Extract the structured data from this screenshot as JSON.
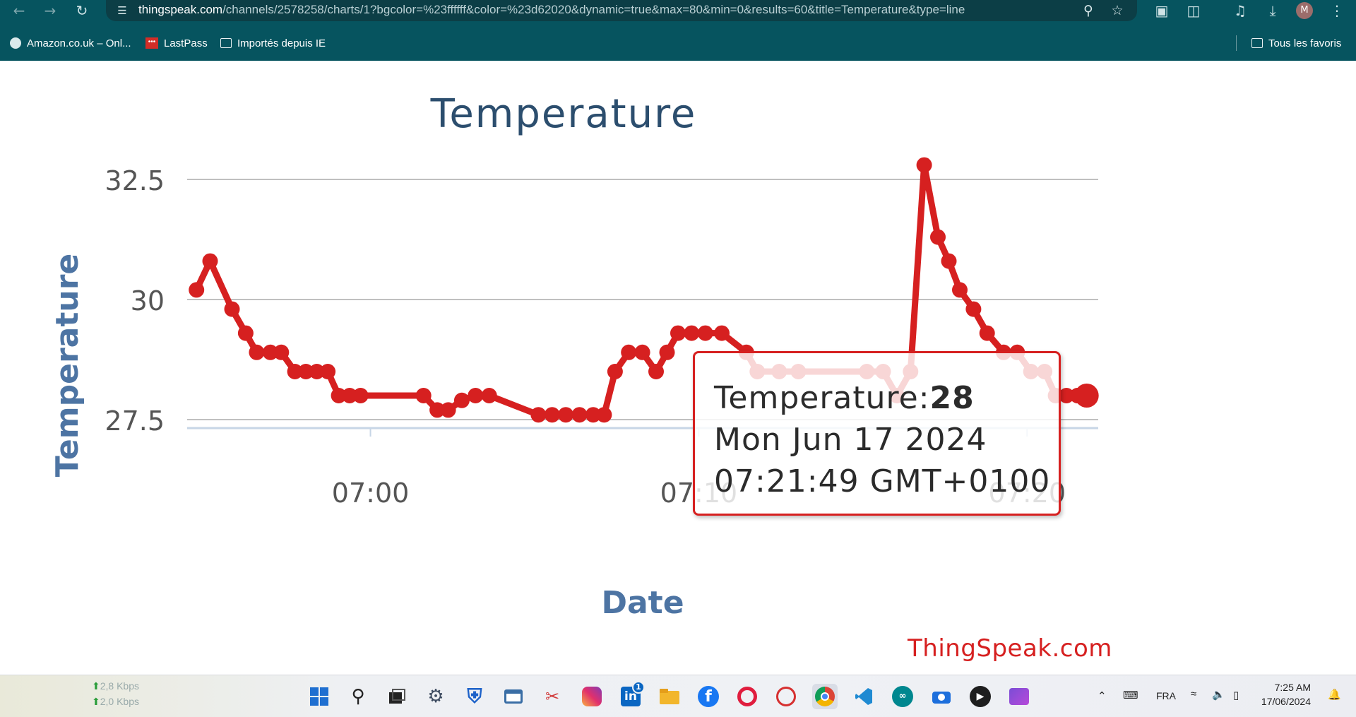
{
  "browser": {
    "url_host": "thingspeak.com",
    "url_path": "/channels/2578258/charts/1?bgcolor=%23ffffff&color=%23d62020&dynamic=true&max=80&min=0&results=60&title=Temperature&type=line",
    "profile_initial": "M",
    "bookmarks": [
      {
        "label": "Amazon.co.uk – Onl...",
        "icon": "globe-icon"
      },
      {
        "label": "LastPass",
        "icon": "lastpass-icon"
      },
      {
        "label": "Importés depuis IE",
        "icon": "folder-icon"
      }
    ],
    "all_bookmarks_label": "Tous les favoris"
  },
  "tooltip": {
    "series_label": "Temperature:",
    "value": "28",
    "date_line": "Mon Jun 17 2024",
    "time_line": "07:21:49 GMT+0100"
  },
  "watermark": "ThingSpeak.com",
  "taskbar": {
    "net_up": "2,8 Kbps",
    "net_down": "2,0 Kbps",
    "language": "FRA",
    "time": "7:25 AM",
    "date": "17/06/2024",
    "apps": [
      "windows-start-icon",
      "search-icon",
      "task-view-icon",
      "settings-icon",
      "defender-icon",
      "terminal-icon",
      "snipping-tool-icon",
      "instagram-icon",
      "linkedin-icon",
      "file-explorer-icon",
      "facebook-icon",
      "opera-icon",
      "sync-icon",
      "chrome-icon",
      "vscode-icon",
      "arduino-icon",
      "camera-icon",
      "media-player-icon",
      "clipchamp-icon"
    ],
    "linkedin_badge": "1"
  },
  "chart_data": {
    "type": "line",
    "title": "Temperature",
    "xlabel": "Date",
    "ylabel": "Temperature",
    "color": "#d62020",
    "x_ticks": [
      "07:00",
      "07:10",
      "07:20"
    ],
    "y_ticks": [
      "27.5",
      "30",
      "32.5"
    ],
    "ylim": [
      27.3,
      32.8
    ],
    "xlim": [
      "06:54:25",
      "07:22:10"
    ],
    "grid": true,
    "legend": "none",
    "highlighted_point": {
      "time": "07:21:49",
      "value": 28
    },
    "series": [
      {
        "name": "Temperature",
        "points": [
          [
            "06:54:42",
            30.2
          ],
          [
            "06:55:07",
            30.8
          ],
          [
            "06:55:47",
            29.8
          ],
          [
            "06:56:12",
            29.3
          ],
          [
            "06:56:32",
            28.9
          ],
          [
            "06:56:57",
            28.9
          ],
          [
            "06:57:17",
            28.9
          ],
          [
            "06:57:42",
            28.5
          ],
          [
            "06:58:02",
            28.5
          ],
          [
            "06:58:22",
            28.5
          ],
          [
            "06:58:42",
            28.5
          ],
          [
            "06:59:02",
            28.0
          ],
          [
            "06:59:22",
            28.0
          ],
          [
            "06:59:42",
            28.0
          ],
          [
            "07:01:37",
            28.0
          ],
          [
            "07:02:02",
            27.7
          ],
          [
            "07:02:22",
            27.7
          ],
          [
            "07:02:47",
            27.9
          ],
          [
            "07:03:12",
            28.0
          ],
          [
            "07:03:37",
            28.0
          ],
          [
            "07:05:07",
            27.6
          ],
          [
            "07:05:32",
            27.6
          ],
          [
            "07:05:57",
            27.6
          ],
          [
            "07:06:22",
            27.6
          ],
          [
            "07:06:47",
            27.6
          ],
          [
            "07:07:07",
            27.6
          ],
          [
            "07:07:27",
            28.5
          ],
          [
            "07:07:52",
            28.9
          ],
          [
            "07:08:17",
            28.9
          ],
          [
            "07:08:42",
            28.5
          ],
          [
            "07:09:02",
            28.9
          ],
          [
            "07:09:22",
            29.3
          ],
          [
            "07:09:47",
            29.3
          ],
          [
            "07:10:12",
            29.3
          ],
          [
            "07:10:42",
            29.3
          ],
          [
            "07:11:27",
            28.9
          ],
          [
            "07:11:47",
            28.5
          ],
          [
            "07:12:27",
            28.5
          ],
          [
            "07:13:02",
            28.5
          ],
          [
            "07:15:07",
            28.5
          ],
          [
            "07:15:37",
            28.5
          ],
          [
            "07:16:02",
            28.0
          ],
          [
            "07:16:27",
            28.5
          ],
          [
            "07:16:52",
            32.8
          ],
          [
            "07:17:17",
            31.3
          ],
          [
            "07:17:37",
            30.8
          ],
          [
            "07:17:57",
            30.2
          ],
          [
            "07:18:22",
            29.8
          ],
          [
            "07:18:47",
            29.3
          ],
          [
            "07:19:17",
            28.9
          ],
          [
            "07:19:42",
            28.9
          ],
          [
            "07:20:07",
            28.5
          ],
          [
            "07:20:32",
            28.5
          ],
          [
            "07:20:52",
            28.0
          ],
          [
            "07:21:12",
            28.0
          ],
          [
            "07:21:32",
            28.0
          ],
          [
            "07:21:49",
            28.0
          ]
        ]
      }
    ]
  }
}
